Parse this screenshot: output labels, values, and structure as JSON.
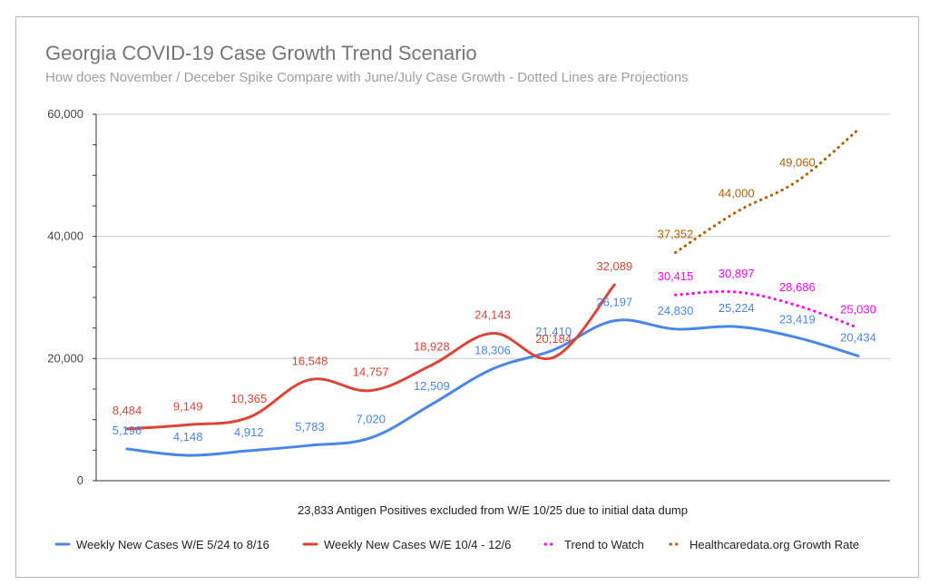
{
  "chart_data": {
    "type": "line",
    "title": "Georgia COVID-19 Case Growth Trend Scenario",
    "subtitle": "How does November / Deceber Spike Compare with June/July Case Growth - Dotted Lines are Projections",
    "ylim": [
      0,
      60000
    ],
    "yticks": [
      "0",
      "20,000",
      "40,000",
      "60,000"
    ],
    "ytick_values": [
      0,
      20000,
      40000,
      60000
    ],
    "n_points": 13,
    "note": "23,833 Antigen Positives excluded from W/E 10/25 due to initial data dump",
    "legend_position": "bottom",
    "series": [
      {
        "name": "Weekly New Cases W/E 5/24 to 8/16",
        "color": "#4a86e8",
        "style": "solid",
        "x": [
          0,
          1,
          2,
          3,
          4,
          5,
          6,
          7,
          8,
          9,
          10,
          11,
          12
        ],
        "values": [
          5196,
          4148,
          4912,
          5783,
          7020,
          12509,
          18306,
          21410,
          26197,
          24830,
          25224,
          23419,
          20434
        ],
        "labels": [
          "5,196",
          "4,148",
          "4,912",
          "5,783",
          "7,020",
          "12,509",
          "18,306",
          "21,410",
          "26,197",
          "24,830",
          "25,224",
          "23,419",
          "20,434"
        ]
      },
      {
        "name": "Weekly New Cases W/E 10/4 - 12/6",
        "color": "#db4437",
        "style": "solid",
        "x": [
          0,
          1,
          2,
          3,
          4,
          5,
          6,
          7,
          8
        ],
        "values": [
          8484,
          9149,
          10365,
          16548,
          14757,
          18928,
          24143,
          20184,
          32089
        ],
        "labels": [
          "8,484",
          "9,149",
          "10,365",
          "16,548",
          "14,757",
          "18,928",
          "24,143",
          "20,184",
          "32,089"
        ]
      },
      {
        "name": "Trend to Watch",
        "color": "#ff00ff",
        "style": "dotted",
        "x": [
          9,
          10,
          11,
          12
        ],
        "values": [
          30415,
          30897,
          28686,
          25030
        ],
        "labels": [
          "30,415",
          "30,897",
          "28,686",
          "25,030"
        ]
      },
      {
        "name": "Healthcaredata.org Growth Rate",
        "color": "#b45f06",
        "style": "dotted",
        "x": [
          9,
          10,
          11,
          12
        ],
        "values": [
          37352,
          44000,
          49060,
          57500
        ],
        "labels": [
          "37,352",
          "44,000",
          "49,060",
          ""
        ]
      }
    ]
  }
}
